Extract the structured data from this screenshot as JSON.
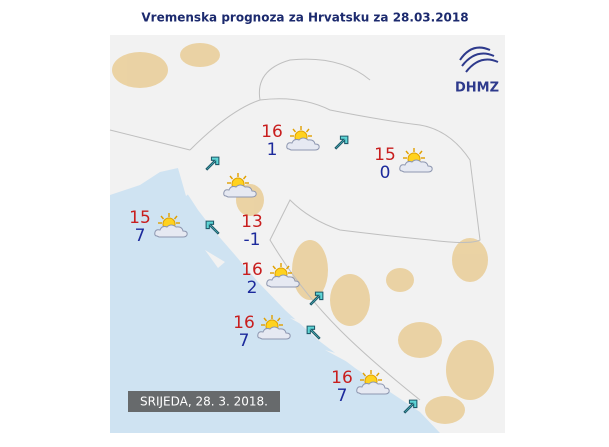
{
  "header": {
    "title": "Vremenska prognoza za Hrvatsku za 28.03.2018"
  },
  "logo": {
    "text": "DHMZ"
  },
  "date_label": "SRIJEDA, 28. 3. 2018.",
  "locations": [
    {
      "max": 16,
      "min": 1
    },
    {
      "max": 15,
      "min": 0
    },
    {
      "max": 15,
      "min": 7
    },
    {
      "max": 13,
      "min": -1
    },
    {
      "max": 16,
      "min": 2
    },
    {
      "max": 16,
      "min": 7
    },
    {
      "max": 16,
      "min": 7
    }
  ]
}
